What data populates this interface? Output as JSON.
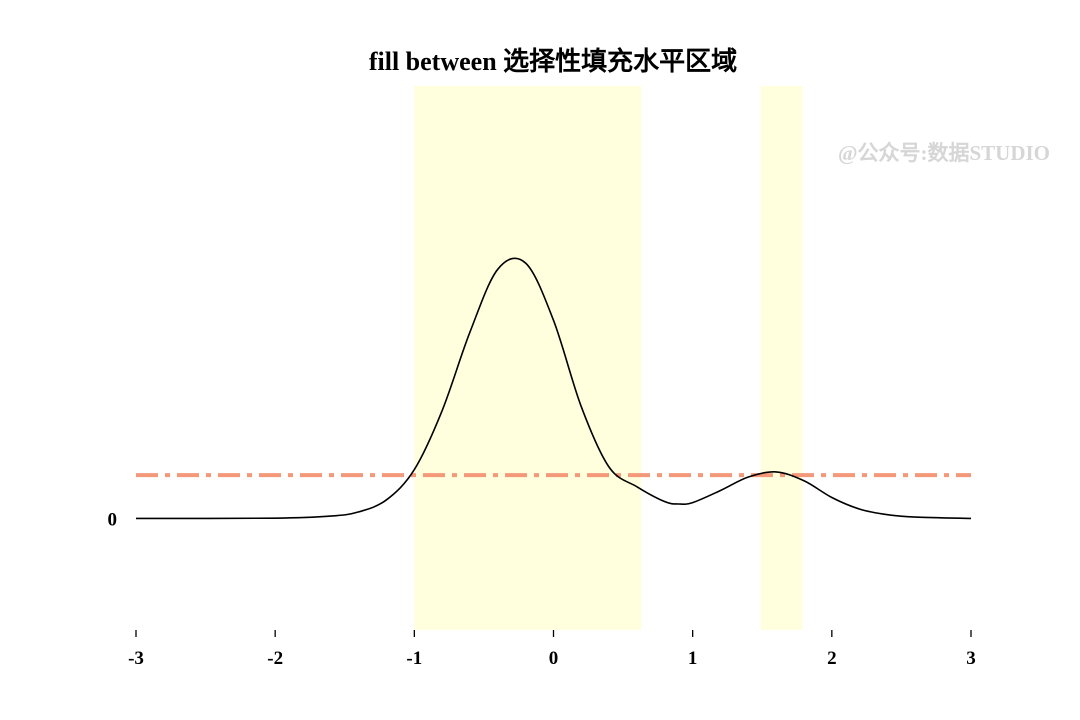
{
  "chart_data": {
    "type": "line",
    "title": "fill between 选择性填充水平区域",
    "xlabel": "",
    "ylabel": "",
    "xlim": [
      -3,
      3
    ],
    "ylim": [
      -0.24,
      0.93
    ],
    "x_ticks": [
      "-3",
      "-2",
      "-1",
      "0",
      "1",
      "2",
      "3"
    ],
    "y_ticks": [
      "0"
    ],
    "grid": false,
    "legend": "none",
    "series": [
      {
        "line_style": "solid",
        "color": "#000000",
        "x": [
          -3.0,
          -2.0,
          -1.6,
          -1.4,
          -1.2,
          -1.0,
          -0.8,
          -0.6,
          -0.4,
          -0.2,
          0.0,
          0.2,
          0.4,
          0.6,
          0.8,
          0.9,
          1.0,
          1.2,
          1.4,
          1.6,
          1.8,
          2.0,
          2.2,
          2.4,
          2.6,
          3.0
        ],
        "y": [
          0.0,
          0.0005,
          0.005,
          0.014,
          0.04,
          0.105,
          0.232,
          0.401,
          0.536,
          0.549,
          0.426,
          0.24,
          0.11,
          0.068,
          0.036,
          0.031,
          0.034,
          0.06,
          0.089,
          0.1,
          0.081,
          0.045,
          0.02,
          0.008,
          0.003,
          0.0
        ]
      }
    ],
    "threshold": {
      "y": 0.093,
      "line_style": "dashdot",
      "color": "#f4987a"
    },
    "filled_regions": [
      {
        "x_start": -1.0,
        "x_end": 0.63,
        "color": "#ffffdd"
      },
      {
        "x_start": 1.49,
        "x_end": 1.79,
        "color": "#ffffdd"
      }
    ],
    "watermark": "@公众号:数据STUDIO"
  }
}
